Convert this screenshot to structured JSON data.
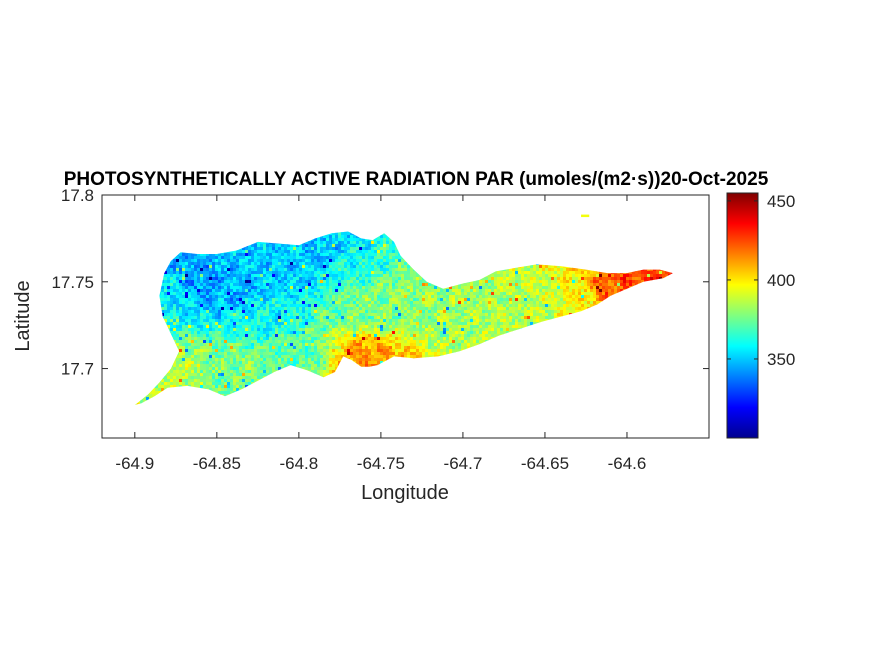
{
  "chart_data": {
    "type": "heatmap",
    "title": "PHOTOSYNTHETICALLY ACTIVE RADIATION PAR (umoles/(m2·s))20-Oct-2025",
    "xlabel": "Longitude",
    "ylabel": "Latitude",
    "xlim": [
      -64.92,
      -64.55
    ],
    "ylim": [
      17.66,
      17.8
    ],
    "x_ticks": [
      -64.9,
      -64.85,
      -64.8,
      -64.75,
      -64.7,
      -64.65,
      -64.6
    ],
    "x_tick_labels": [
      "-64.9",
      "-64.85",
      "-64.8",
      "-64.75",
      "-64.7",
      "-64.65",
      "-64.6"
    ],
    "y_ticks": [
      17.7,
      17.75,
      17.8
    ],
    "y_tick_labels": [
      "17.7",
      "17.75",
      "17.8"
    ],
    "colorbar": {
      "colormap": "jet",
      "clim": [
        300,
        455
      ],
      "ticks": [
        350,
        400,
        450
      ],
      "tick_labels": [
        "350",
        "400",
        "450"
      ]
    },
    "grid": false,
    "outline": [
      [
        -64.9,
        17.679
      ],
      [
        -64.892,
        17.685
      ],
      [
        -64.885,
        17.692
      ],
      [
        -64.878,
        17.7
      ],
      [
        -64.873,
        17.71
      ],
      [
        -64.877,
        17.718
      ],
      [
        -64.883,
        17.73
      ],
      [
        -64.885,
        17.742
      ],
      [
        -64.882,
        17.755
      ],
      [
        -64.878,
        17.762
      ],
      [
        -64.872,
        17.767
      ],
      [
        -64.862,
        17.766
      ],
      [
        -64.85,
        17.766
      ],
      [
        -64.838,
        17.768
      ],
      [
        -64.825,
        17.773
      ],
      [
        -64.812,
        17.772
      ],
      [
        -64.8,
        17.771
      ],
      [
        -64.79,
        17.775
      ],
      [
        -64.78,
        17.778
      ],
      [
        -64.77,
        17.779
      ],
      [
        -64.762,
        17.775
      ],
      [
        -64.755,
        17.774
      ],
      [
        -64.748,
        17.778
      ],
      [
        -64.742,
        17.773
      ],
      [
        -64.738,
        17.765
      ],
      [
        -64.73,
        17.757
      ],
      [
        -64.722,
        17.75
      ],
      [
        -64.712,
        17.746
      ],
      [
        -64.7,
        17.749
      ],
      [
        -64.69,
        17.751
      ],
      [
        -64.68,
        17.756
      ],
      [
        -64.668,
        17.758
      ],
      [
        -64.655,
        17.76
      ],
      [
        -64.64,
        17.759
      ],
      [
        -64.625,
        17.757
      ],
      [
        -64.612,
        17.755
      ],
      [
        -64.6,
        17.755
      ],
      [
        -64.59,
        17.757
      ],
      [
        -64.58,
        17.757
      ],
      [
        -64.572,
        17.755
      ],
      [
        -64.578,
        17.752
      ],
      [
        -64.59,
        17.75
      ],
      [
        -64.6,
        17.746
      ],
      [
        -64.61,
        17.742
      ],
      [
        -64.618,
        17.737
      ],
      [
        -64.628,
        17.733
      ],
      [
        -64.64,
        17.73
      ],
      [
        -64.652,
        17.727
      ],
      [
        -64.665,
        17.723
      ],
      [
        -64.678,
        17.719
      ],
      [
        -64.69,
        17.714
      ],
      [
        -64.702,
        17.71
      ],
      [
        -64.715,
        17.707
      ],
      [
        -64.73,
        17.706
      ],
      [
        -64.742,
        17.707
      ],
      [
        -64.748,
        17.704
      ],
      [
        -64.752,
        17.702
      ],
      [
        -64.757,
        17.701
      ],
      [
        -64.762,
        17.701
      ],
      [
        -64.768,
        17.705
      ],
      [
        -64.773,
        17.707
      ],
      [
        -64.778,
        17.698
      ],
      [
        -64.785,
        17.695
      ],
      [
        -64.795,
        17.699
      ],
      [
        -64.805,
        17.702
      ],
      [
        -64.815,
        17.698
      ],
      [
        -64.825,
        17.693
      ],
      [
        -64.835,
        17.688
      ],
      [
        -64.845,
        17.684
      ],
      [
        -64.855,
        17.688
      ],
      [
        -64.868,
        17.69
      ],
      [
        -64.88,
        17.689
      ],
      [
        -64.888,
        17.684
      ],
      [
        -64.896,
        17.68
      ],
      [
        -64.9,
        17.679
      ]
    ],
    "islet": [
      [
        -64.628,
        17.788
      ],
      [
        -64.623,
        17.788
      ]
    ],
    "value_field_anchors": [
      {
        "lon": -64.88,
        "lat": 17.745,
        "value": 357
      },
      {
        "lon": -64.86,
        "lat": 17.752,
        "value": 342
      },
      {
        "lon": -64.84,
        "lat": 17.747,
        "value": 347
      },
      {
        "lon": -64.83,
        "lat": 17.762,
        "value": 350
      },
      {
        "lon": -64.81,
        "lat": 17.755,
        "value": 352
      },
      {
        "lon": -64.79,
        "lat": 17.765,
        "value": 350
      },
      {
        "lon": -64.77,
        "lat": 17.755,
        "value": 363
      },
      {
        "lon": -64.76,
        "lat": 17.74,
        "value": 377
      },
      {
        "lon": -64.76,
        "lat": 17.705,
        "value": 412
      },
      {
        "lon": -64.73,
        "lat": 17.74,
        "value": 379
      },
      {
        "lon": -64.7,
        "lat": 17.738,
        "value": 383
      },
      {
        "lon": -64.67,
        "lat": 17.735,
        "value": 384
      },
      {
        "lon": -64.65,
        "lat": 17.742,
        "value": 388
      },
      {
        "lon": -64.63,
        "lat": 17.742,
        "value": 398
      },
      {
        "lon": -64.61,
        "lat": 17.745,
        "value": 420
      },
      {
        "lon": -64.59,
        "lat": 17.752,
        "value": 428
      },
      {
        "lon": -64.88,
        "lat": 17.7,
        "value": 386
      },
      {
        "lon": -64.84,
        "lat": 17.7,
        "value": 376
      },
      {
        "lon": -64.8,
        "lat": 17.71,
        "value": 372
      },
      {
        "lon": -64.82,
        "lat": 17.73,
        "value": 360
      }
    ]
  }
}
